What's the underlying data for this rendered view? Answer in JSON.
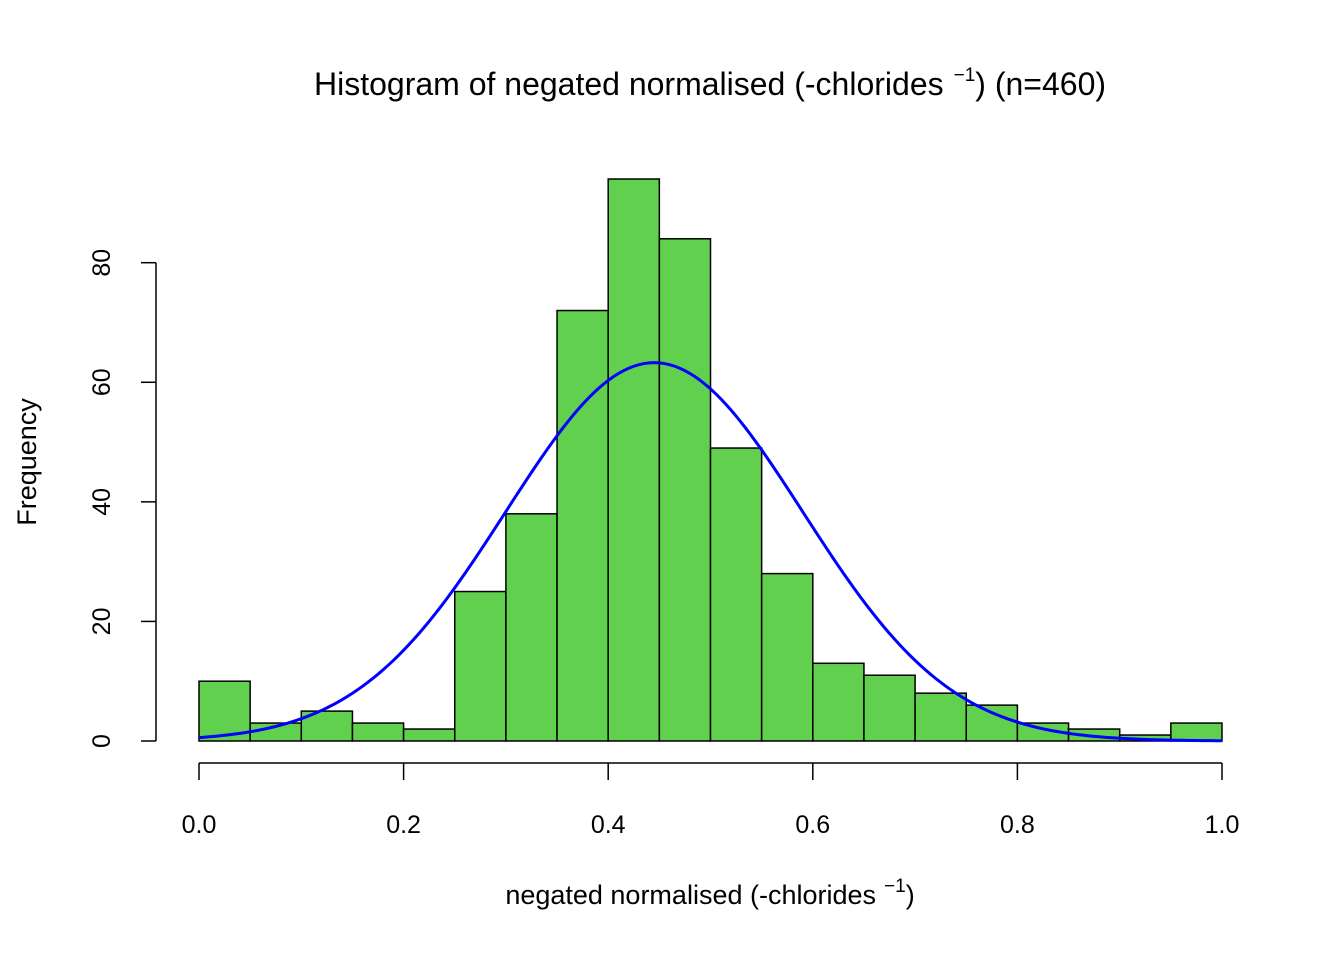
{
  "chart_data": {
    "type": "bar",
    "title": {
      "main": "Histogram of negated normalised (-chlorides",
      "superscript": "−1",
      "suffix": ") (n=460)"
    },
    "xlabel": {
      "main": "negated normalised (-chlorides",
      "superscript": "−1",
      "suffix": ")"
    },
    "ylabel": "Frequency",
    "bin_edges": [
      0.0,
      0.05,
      0.1,
      0.15,
      0.2,
      0.25,
      0.3,
      0.35,
      0.4,
      0.45,
      0.5,
      0.55,
      0.6,
      0.65,
      0.7,
      0.75,
      0.8,
      0.85,
      0.9,
      0.95,
      1.0
    ],
    "values": [
      10,
      3,
      5,
      3,
      2,
      25,
      38,
      72,
      94,
      84,
      49,
      28,
      13,
      11,
      8,
      6,
      3,
      2,
      1,
      3
    ],
    "xlim": [
      0.0,
      1.0
    ],
    "ylim": [
      0,
      94
    ],
    "x_ticks": [
      "0.0",
      "0.2",
      "0.4",
      "0.6",
      "0.8",
      "1.0"
    ],
    "y_ticks": [
      "0",
      "20",
      "40",
      "60",
      "80"
    ],
    "normal_curve": {
      "n": 460,
      "bin_width": 0.05,
      "mean": 0.445,
      "sd": 0.145
    },
    "colors": {
      "bar_fill": "#61d04f",
      "bar_stroke": "#000000",
      "curve": "#0000ff"
    }
  }
}
